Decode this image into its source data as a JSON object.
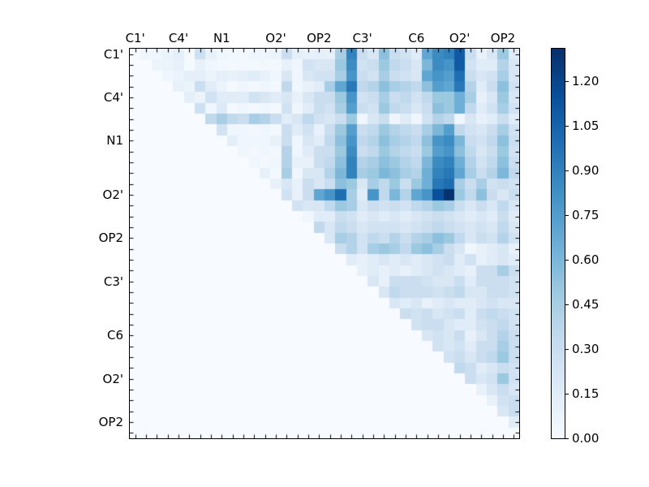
{
  "figure": {
    "background": "#ffffff",
    "frame_color": "#000000",
    "text_color": "#000000"
  },
  "chart_data": {
    "type": "heatmap",
    "title": "",
    "xlabel": "",
    "ylabel": "",
    "grid_size": 36,
    "x_tick_labels": [
      "C1'",
      "C4'",
      "N1",
      "O2'",
      "OP2",
      "C3'",
      "C6",
      "O2'",
      "OP2"
    ],
    "y_tick_labels": [
      "C1'",
      "C4'",
      "N1",
      "O2'",
      "OP2",
      "C3'",
      "C6",
      "O2'",
      "OP2"
    ],
    "tick_label_cell_indices": [
      0,
      4,
      8,
      13,
      17,
      21,
      26,
      30,
      34
    ],
    "colormap": "Blues",
    "colormap_stops": [
      [
        0.0,
        "#f7fbff"
      ],
      [
        0.125,
        "#deebf7"
      ],
      [
        0.25,
        "#c6dbef"
      ],
      [
        0.375,
        "#9ecae1"
      ],
      [
        0.5,
        "#6baed6"
      ],
      [
        0.625,
        "#4292c6"
      ],
      [
        0.75,
        "#2171b5"
      ],
      [
        0.875,
        "#08519c"
      ],
      [
        1.0,
        "#08306b"
      ]
    ],
    "vmin": 0.0,
    "vmax": 1.31,
    "colorbar_ticks": [
      0.0,
      0.15,
      0.3,
      0.45,
      0.6,
      0.75,
      0.9,
      1.05,
      1.2
    ],
    "colorbar_tick_labels": [
      "0.00",
      "0.15",
      "0.30",
      "0.45",
      "0.60",
      "0.75",
      "0.90",
      "1.05",
      "1.20"
    ],
    "matrix": [
      [
        0,
        0.05,
        0.05,
        0.08,
        0.12,
        0.02,
        0.28,
        0.1,
        0.05,
        0.03,
        0.03,
        0.05,
        0.06,
        0.08,
        0.3,
        0.12,
        0.1,
        0.12,
        0.1,
        0.45,
        0.9,
        0.3,
        0.2,
        0.55,
        0.3,
        0.25,
        0.15,
        0.7,
        0.85,
        0.9,
        1.1,
        0.3,
        0.1,
        0.2,
        0.5,
        0.15
      ],
      [
        0,
        0,
        0.08,
        0.08,
        0.1,
        0.02,
        0.1,
        0.05,
        0.03,
        0.02,
        0.03,
        0.02,
        0.04,
        0.03,
        0.1,
        0.05,
        0.25,
        0.2,
        0.2,
        0.5,
        0.85,
        0.25,
        0.3,
        0.5,
        0.35,
        0.3,
        0.2,
        0.6,
        0.85,
        0.8,
        1.1,
        0.25,
        0.15,
        0.15,
        0.4,
        0.2
      ],
      [
        0,
        0,
        0,
        0.05,
        0.08,
        0.12,
        0.12,
        0.08,
        0.12,
        0.1,
        0.12,
        0.15,
        0.1,
        0.05,
        0.2,
        0.05,
        0.2,
        0.25,
        0.25,
        0.45,
        0.8,
        0.3,
        0.25,
        0.45,
        0.3,
        0.25,
        0.2,
        0.7,
        0.8,
        0.75,
        1.0,
        0.3,
        0.2,
        0.25,
        0.45,
        0.2
      ],
      [
        0,
        0,
        0,
        0,
        0.1,
        0.08,
        0.3,
        0.15,
        0.08,
        0.02,
        0.05,
        0.03,
        0.05,
        0.03,
        0.35,
        0.05,
        0.1,
        0.15,
        0.45,
        0.7,
        0.95,
        0.35,
        0.4,
        0.55,
        0.45,
        0.4,
        0.35,
        0.55,
        0.75,
        0.7,
        0.95,
        0.4,
        0.15,
        0.3,
        0.55,
        0.25
      ],
      [
        0,
        0,
        0,
        0,
        0,
        0.12,
        0.08,
        0.25,
        0.15,
        0.15,
        0.15,
        0.25,
        0.2,
        0.15,
        0.2,
        0.1,
        0.2,
        0.3,
        0.3,
        0.5,
        0.8,
        0.25,
        0.3,
        0.45,
        0.3,
        0.35,
        0.25,
        0.35,
        0.5,
        0.5,
        0.65,
        0.45,
        0.1,
        0.2,
        0.5,
        0.2
      ],
      [
        0,
        0,
        0,
        0,
        0,
        0,
        0.28,
        0.05,
        0.18,
        0.02,
        0.05,
        0.03,
        0.05,
        0.03,
        0.25,
        0.05,
        0.15,
        0.3,
        0.25,
        0.45,
        0.75,
        0.3,
        0.25,
        0.5,
        0.35,
        0.3,
        0.2,
        0.3,
        0.55,
        0.5,
        0.65,
        0.35,
        0.15,
        0.25,
        0.45,
        0.25
      ],
      [
        0,
        0,
        0,
        0,
        0,
        0,
        0,
        0.35,
        0.45,
        0.35,
        0.3,
        0.45,
        0.4,
        0.3,
        0.15,
        0.2,
        0.35,
        0.25,
        0.2,
        0.3,
        0.5,
        0.05,
        0.2,
        0.3,
        0.05,
        0.15,
        0.05,
        0.25,
        0.4,
        0.35,
        0.05,
        0.2,
        0.1,
        0.15,
        0.3,
        0.15
      ],
      [
        0,
        0,
        0,
        0,
        0,
        0,
        0,
        0,
        0.25,
        0.05,
        0.05,
        0.03,
        0.05,
        0.03,
        0.3,
        0.15,
        0.25,
        0.1,
        0.3,
        0.5,
        0.75,
        0.3,
        0.35,
        0.5,
        0.4,
        0.35,
        0.3,
        0.45,
        0.6,
        0.75,
        0.35,
        0.25,
        0.2,
        0.3,
        0.45,
        0.25
      ],
      [
        0,
        0,
        0,
        0,
        0,
        0,
        0,
        0,
        0,
        0.12,
        0.05,
        0.05,
        0.05,
        0.1,
        0.3,
        0.05,
        0.2,
        0.15,
        0.35,
        0.55,
        0.8,
        0.35,
        0.4,
        0.55,
        0.45,
        0.4,
        0.35,
        0.55,
        0.8,
        0.85,
        0.6,
        0.3,
        0.25,
        0.35,
        0.55,
        0.3
      ],
      [
        0,
        0,
        0,
        0,
        0,
        0,
        0,
        0,
        0,
        0,
        0.05,
        0.03,
        0.05,
        0.03,
        0.4,
        0.05,
        0.15,
        0.3,
        0.3,
        0.5,
        0.85,
        0.3,
        0.35,
        0.5,
        0.4,
        0.35,
        0.3,
        0.5,
        0.75,
        0.8,
        0.55,
        0.35,
        0.2,
        0.3,
        0.5,
        0.25
      ],
      [
        0,
        0,
        0,
        0,
        0,
        0,
        0,
        0,
        0,
        0,
        0,
        0.05,
        0.03,
        0.05,
        0.4,
        0.1,
        0.1,
        0.3,
        0.35,
        0.55,
        0.9,
        0.4,
        0.45,
        0.55,
        0.5,
        0.4,
        0.35,
        0.6,
        0.85,
        0.9,
        0.65,
        0.4,
        0.25,
        0.35,
        0.55,
        0.3
      ],
      [
        0,
        0,
        0,
        0,
        0,
        0,
        0,
        0,
        0,
        0,
        0,
        0,
        0.1,
        0.03,
        0.45,
        0.05,
        0.2,
        0.2,
        0.4,
        0.6,
        0.9,
        0.45,
        0.5,
        0.6,
        0.55,
        0.45,
        0.4,
        0.65,
        0.9,
        0.95,
        0.7,
        0.45,
        0.3,
        0.4,
        0.6,
        0.35
      ],
      [
        0,
        0,
        0,
        0,
        0,
        0,
        0,
        0,
        0,
        0,
        0,
        0,
        0,
        0.1,
        0.2,
        0.1,
        0.3,
        0.2,
        0.3,
        0.55,
        0.5,
        0.2,
        0.45,
        0.35,
        0.5,
        0.3,
        0.5,
        0.65,
        0.95,
        1.0,
        0.45,
        0.3,
        0.45,
        0.25,
        0.3,
        0.25
      ],
      [
        0,
        0,
        0,
        0,
        0,
        0,
        0,
        0,
        0,
        0,
        0,
        0,
        0,
        0,
        0.25,
        0.1,
        0.3,
        0.7,
        0.8,
        1.0,
        0.45,
        0.15,
        0.8,
        0.35,
        0.6,
        0.4,
        0.7,
        0.8,
        1.15,
        1.3,
        0.5,
        0.35,
        0.55,
        0.3,
        0.2,
        0.3
      ],
      [
        0,
        0,
        0,
        0,
        0,
        0,
        0,
        0,
        0,
        0,
        0,
        0,
        0,
        0,
        0,
        0.25,
        0.2,
        0.2,
        0.35,
        0.5,
        0.45,
        0.2,
        0.3,
        0.25,
        0.3,
        0.25,
        0.35,
        0.4,
        0.5,
        0.45,
        0.3,
        0.2,
        0.3,
        0.2,
        0.35,
        0.2
      ],
      [
        0,
        0,
        0,
        0,
        0,
        0,
        0,
        0,
        0,
        0,
        0,
        0,
        0,
        0,
        0,
        0,
        0.05,
        0.15,
        0.15,
        0.3,
        0.25,
        0.15,
        0.2,
        0.15,
        0.2,
        0.15,
        0.2,
        0.25,
        0.3,
        0.25,
        0.2,
        0.15,
        0.2,
        0.15,
        0.3,
        0.15
      ],
      [
        0,
        0,
        0,
        0,
        0,
        0,
        0,
        0,
        0,
        0,
        0,
        0,
        0,
        0,
        0,
        0,
        0,
        0.35,
        0.2,
        0.35,
        0.3,
        0.2,
        0.25,
        0.25,
        0.25,
        0.2,
        0.25,
        0.3,
        0.35,
        0.3,
        0.25,
        0.2,
        0.25,
        0.2,
        0.35,
        0.2
      ],
      [
        0,
        0,
        0,
        0,
        0,
        0,
        0,
        0,
        0,
        0,
        0,
        0,
        0,
        0,
        0,
        0,
        0,
        0,
        0.2,
        0.45,
        0.4,
        0.25,
        0.35,
        0.3,
        0.4,
        0.3,
        0.4,
        0.45,
        0.55,
        0.5,
        0.35,
        0.2,
        0.3,
        0.25,
        0.4,
        0.25
      ],
      [
        0,
        0,
        0,
        0,
        0,
        0,
        0,
        0,
        0,
        0,
        0,
        0,
        0,
        0,
        0,
        0,
        0,
        0,
        0,
        0.3,
        0.4,
        0.25,
        0.45,
        0.5,
        0.45,
        0.35,
        0.5,
        0.55,
        0.45,
        0.3,
        0.2,
        0.05,
        0.1,
        0.15,
        0.2,
        0.1
      ],
      [
        0,
        0,
        0,
        0,
        0,
        0,
        0,
        0,
        0,
        0,
        0,
        0,
        0,
        0,
        0,
        0,
        0,
        0,
        0,
        0,
        0.15,
        0.1,
        0.15,
        0.2,
        0.15,
        0.2,
        0.15,
        0.2,
        0.25,
        0.3,
        0.15,
        0.25,
        0.1,
        0.15,
        0.2,
        0.15
      ],
      [
        0,
        0,
        0,
        0,
        0,
        0,
        0,
        0,
        0,
        0,
        0,
        0,
        0,
        0,
        0,
        0,
        0,
        0,
        0,
        0,
        0,
        0.1,
        0.15,
        0.1,
        0.15,
        0.1,
        0.15,
        0.2,
        0.25,
        0.2,
        0.15,
        0.1,
        0.3,
        0.3,
        0.45,
        0.3
      ],
      [
        0,
        0,
        0,
        0,
        0,
        0,
        0,
        0,
        0,
        0,
        0,
        0,
        0,
        0,
        0,
        0,
        0,
        0,
        0,
        0,
        0,
        0,
        0.2,
        0.1,
        0.3,
        0.3,
        0.3,
        0.25,
        0.2,
        0.2,
        0.3,
        0.15,
        0.3,
        0.3,
        0.3,
        0.25
      ],
      [
        0,
        0,
        0,
        0,
        0,
        0,
        0,
        0,
        0,
        0,
        0,
        0,
        0,
        0,
        0,
        0,
        0,
        0,
        0,
        0,
        0,
        0,
        0,
        0.2,
        0.35,
        0.3,
        0.3,
        0.3,
        0.25,
        0.3,
        0.35,
        0.2,
        0.2,
        0.3,
        0.3,
        0.25
      ],
      [
        0,
        0,
        0,
        0,
        0,
        0,
        0,
        0,
        0,
        0,
        0,
        0,
        0,
        0,
        0,
        0,
        0,
        0,
        0,
        0,
        0,
        0,
        0,
        0,
        0.2,
        0.15,
        0.2,
        0.1,
        0.15,
        0.2,
        0.15,
        0.15,
        0.2,
        0.25,
        0.2,
        0.2
      ],
      [
        0,
        0,
        0,
        0,
        0,
        0,
        0,
        0,
        0,
        0,
        0,
        0,
        0,
        0,
        0,
        0,
        0,
        0,
        0,
        0,
        0,
        0,
        0,
        0,
        0,
        0.3,
        0.25,
        0.3,
        0.2,
        0.25,
        0.3,
        0.15,
        0.3,
        0.35,
        0.3,
        0.25
      ],
      [
        0,
        0,
        0,
        0,
        0,
        0,
        0,
        0,
        0,
        0,
        0,
        0,
        0,
        0,
        0,
        0,
        0,
        0,
        0,
        0,
        0,
        0,
        0,
        0,
        0,
        0,
        0.25,
        0.3,
        0.3,
        0.2,
        0.15,
        0.15,
        0.25,
        0.3,
        0.35,
        0.25
      ],
      [
        0,
        0,
        0,
        0,
        0,
        0,
        0,
        0,
        0,
        0,
        0,
        0,
        0,
        0,
        0,
        0,
        0,
        0,
        0,
        0,
        0,
        0,
        0,
        0,
        0,
        0,
        0,
        0.2,
        0.25,
        0.2,
        0.3,
        0.1,
        0.2,
        0.3,
        0.4,
        0.3
      ],
      [
        0,
        0,
        0,
        0,
        0,
        0,
        0,
        0,
        0,
        0,
        0,
        0,
        0,
        0,
        0,
        0,
        0,
        0,
        0,
        0,
        0,
        0,
        0,
        0,
        0,
        0,
        0,
        0,
        0.25,
        0.2,
        0.25,
        0.15,
        0.3,
        0.3,
        0.45,
        0.3
      ],
      [
        0,
        0,
        0,
        0,
        0,
        0,
        0,
        0,
        0,
        0,
        0,
        0,
        0,
        0,
        0,
        0,
        0,
        0,
        0,
        0,
        0,
        0,
        0,
        0,
        0,
        0,
        0,
        0,
        0,
        0.25,
        0.3,
        0.2,
        0.3,
        0.35,
        0.5,
        0.3
      ],
      [
        0,
        0,
        0,
        0,
        0,
        0,
        0,
        0,
        0,
        0,
        0,
        0,
        0,
        0,
        0,
        0,
        0,
        0,
        0,
        0,
        0,
        0,
        0,
        0,
        0,
        0,
        0,
        0,
        0,
        0,
        0.35,
        0.3,
        0.15,
        0.2,
        0.3,
        0.25
      ],
      [
        0,
        0,
        0,
        0,
        0,
        0,
        0,
        0,
        0,
        0,
        0,
        0,
        0,
        0,
        0,
        0,
        0,
        0,
        0,
        0,
        0,
        0,
        0,
        0,
        0,
        0,
        0,
        0,
        0,
        0,
        0,
        0.3,
        0.2,
        0.25,
        0.5,
        0.25
      ],
      [
        0,
        0,
        0,
        0,
        0,
        0,
        0,
        0,
        0,
        0,
        0,
        0,
        0,
        0,
        0,
        0,
        0,
        0,
        0,
        0,
        0,
        0,
        0,
        0,
        0,
        0,
        0,
        0,
        0,
        0,
        0,
        0,
        0.1,
        0.2,
        0.3,
        0.2
      ],
      [
        0,
        0,
        0,
        0,
        0,
        0,
        0,
        0,
        0,
        0,
        0,
        0,
        0,
        0,
        0,
        0,
        0,
        0,
        0,
        0,
        0,
        0,
        0,
        0,
        0,
        0,
        0,
        0,
        0,
        0,
        0,
        0,
        0,
        0.1,
        0.25,
        0.3
      ],
      [
        0,
        0,
        0,
        0,
        0,
        0,
        0,
        0,
        0,
        0,
        0,
        0,
        0,
        0,
        0,
        0,
        0,
        0,
        0,
        0,
        0,
        0,
        0,
        0,
        0,
        0,
        0,
        0,
        0,
        0,
        0,
        0,
        0,
        0,
        0.2,
        0.3
      ],
      [
        0,
        0,
        0,
        0,
        0,
        0,
        0,
        0,
        0,
        0,
        0,
        0,
        0,
        0,
        0,
        0,
        0,
        0,
        0,
        0,
        0,
        0,
        0,
        0,
        0,
        0,
        0,
        0,
        0,
        0,
        0,
        0,
        0,
        0,
        0,
        0.15
      ],
      [
        0,
        0,
        0,
        0,
        0,
        0,
        0,
        0,
        0,
        0,
        0,
        0,
        0,
        0,
        0,
        0,
        0,
        0,
        0,
        0,
        0,
        0,
        0,
        0,
        0,
        0,
        0,
        0,
        0,
        0,
        0,
        0,
        0,
        0,
        0,
        0
      ]
    ]
  }
}
